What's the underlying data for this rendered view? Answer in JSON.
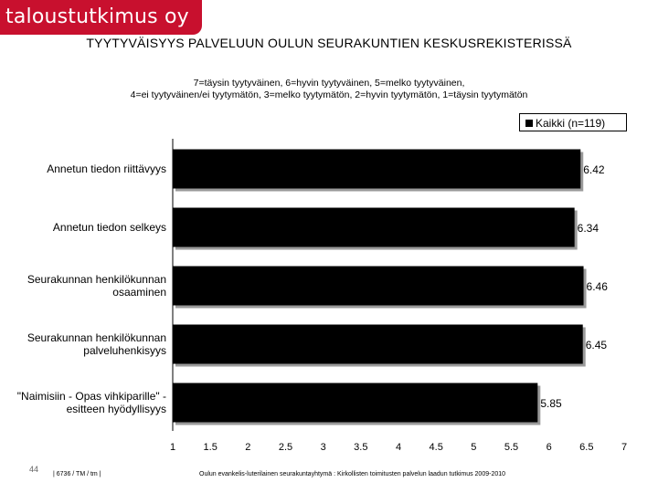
{
  "logo": {
    "text": "taloustutkimus oy"
  },
  "footer": {
    "page_number": "44",
    "reference": "| 6736 / TM / tm |",
    "note": "Oulun evankelis-luterilainen seurakuntayhtymä : Kirkollisten toimitusten palvelun laadun tutkimus 2009-2010"
  },
  "colors": {
    "logo": "#c8102e",
    "bar": "#000000"
  },
  "chart_data": {
    "type": "bar",
    "orientation": "horizontal",
    "title": "TYYTYVÄISYYS PALVELUUN OULUN SEURAKUNTIEN KESKUSREKISTERISSÄ",
    "subtitle_lines": [
      "7=täysin tyytyväinen, 6=hyvin tyytyväinen, 5=melko tyytyväinen,",
      "4=ei tyytyväinen/ei tyytymätön, 3=melko tyytymätön, 2=hyvin tyytymätön, 1=täysin tyytymätön"
    ],
    "categories": [
      [
        "Annetun tiedon riittävyys"
      ],
      [
        "Annetun tiedon selkeys"
      ],
      [
        "Seurakunnan henkilökunnan",
        "osaaminen"
      ],
      [
        "Seurakunnan henkilökunnan",
        "palveluhenkisyys"
      ],
      [
        "\"Naimisiin - Opas vihkiparille\" -",
        "esitteen hyödyllisyys"
      ]
    ],
    "series": [
      {
        "name": "Kaikki (n=119)",
        "values": [
          6.42,
          6.34,
          6.46,
          6.45,
          5.85
        ]
      }
    ],
    "value_labels": [
      "6.42",
      "6.34",
      "6.46",
      "6.45",
      "5.85"
    ],
    "xlim": [
      1,
      7
    ],
    "ticks": [
      "1",
      "1.5",
      "2",
      "2.5",
      "3",
      "3.5",
      "4",
      "4.5",
      "5",
      "5.5",
      "6",
      "6.5",
      "7"
    ],
    "legend_position": "top-right",
    "grid": false
  }
}
